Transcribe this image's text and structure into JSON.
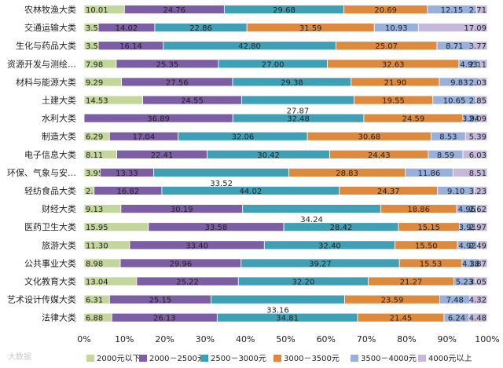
{
  "chart_data": {
    "type": "bar",
    "orientation": "horizontal",
    "stacked": "percent",
    "categories": [
      "农林牧渔大类",
      "交通运输大类",
      "生化与药品大类",
      "资源开发与测绘…",
      "材料与能源大类",
      "土建大类",
      "水利大类",
      "制造大类",
      "电子信息大类",
      "环保、气象与安…",
      "轻纺食品大类",
      "财经大类",
      "医药卫生大类",
      "旅游大类",
      "公共事业大类",
      "文化教育大类",
      "艺术设计传媒大类",
      "法律大类"
    ],
    "series": [
      {
        "name": "2000元以下",
        "color": "#c3d69b",
        "values": [
          10.01,
          3.51,
          3.51,
          7.98,
          9.29,
          14.53,
          0.0,
          6.29,
          8.11,
          3.95,
          2.47,
          9.13,
          15.95,
          11.3,
          8.98,
          13.04,
          6.31,
          6.88
        ]
      },
      {
        "name": "2000－2500元",
        "color": "#7b5ea3",
        "values": [
          24.76,
          14.02,
          16.14,
          25.35,
          27.56,
          24.55,
          36.89,
          17.04,
          22.41,
          13.33,
          16.82,
          30.19,
          33.58,
          33.4,
          29.96,
          25.22,
          25.15,
          26.13
        ]
      },
      {
        "name": "2500－3000元",
        "color": "#3fa0b5",
        "values": [
          29.68,
          22.86,
          42.8,
          27.0,
          29.38,
          27.87,
          32.48,
          32.06,
          30.42,
          33.52,
          44.02,
          34.24,
          28.42,
          32.4,
          39.27,
          32.2,
          33.16,
          34.81
        ]
      },
      {
        "name": "3000－3500元",
        "color": "#de8a3e",
        "values": [
          20.69,
          31.59,
          25.07,
          32.63,
          21.9,
          19.55,
          24.59,
          30.68,
          24.43,
          28.83,
          24.37,
          18.86,
          15.15,
          15.5,
          15.53,
          21.27,
          23.59,
          21.45
        ]
      },
      {
        "name": "3500－4000元",
        "color": "#99b0dc",
        "values": [
          12.15,
          10.93,
          8.71,
          4.93,
          9.83,
          10.65,
          3.94,
          8.53,
          8.59,
          11.86,
          9.1,
          4.96,
          3.93,
          4.92,
          4.38,
          5.23,
          7.48,
          6.24
        ]
      },
      {
        "name": "4000元以上",
        "color": "#c6b8da",
        "values": [
          2.71,
          17.09,
          3.77,
          2.11,
          2.03,
          2.85,
          2.09,
          5.39,
          6.03,
          8.51,
          3.23,
          2.62,
          2.97,
          2.49,
          1.87,
          3.05,
          4.32,
          4.48
        ]
      }
    ],
    "value_labels": [
      [
        "10.01",
        "24.76",
        "29.68",
        "20.69",
        "12.15",
        "2.71"
      ],
      [
        "3.51",
        "14.02",
        "22.86",
        "31.59",
        "10.93",
        "17.09"
      ],
      [
        "3.51",
        "16.14",
        "42.80",
        "25.07",
        "8.71",
        "3.77"
      ],
      [
        "7.98",
        "25.35",
        "27.00",
        "32.63",
        "4.93",
        "2.11"
      ],
      [
        "9.29",
        "27.56",
        "29.38",
        "21.90",
        "9.83",
        "2.03"
      ],
      [
        "14.53",
        "24.55",
        "27.87",
        "19.55",
        "10.65",
        "2.85"
      ],
      [
        "0.00",
        "36.89",
        "32.48",
        "24.59",
        "3.94",
        "2.09"
      ],
      [
        "6.29",
        "17.04",
        "32.06",
        "30.68",
        "8.53",
        "5.39"
      ],
      [
        "8.11",
        "22.41",
        "30.42",
        "24.43",
        "8.59",
        "6.03"
      ],
      [
        "3.95",
        "13.33",
        "33.52",
        "28.83",
        "11.86",
        "8.51"
      ],
      [
        "2.47",
        "16.82",
        "44.02",
        "24.37",
        "9.10",
        "3.23"
      ],
      [
        "9.13",
        "30.19",
        "34.24",
        "18.86",
        "4.96",
        "2.62"
      ],
      [
        "15.95",
        "33.58",
        "28.42",
        "15.15",
        "3.93",
        "2.97"
      ],
      [
        "11.30",
        "33.40",
        "32.40",
        "15.50",
        "4.92",
        "2.49"
      ],
      [
        "8.98",
        "29.96",
        "39.27",
        "15.53",
        "4.38",
        "1.87"
      ],
      [
        "13.04",
        "25.22",
        "32.20",
        "21.27",
        "5.23",
        "3.05"
      ],
      [
        "6.31",
        "25.15",
        "33.16",
        "23.59",
        "7.48",
        "4.32"
      ],
      [
        "6.88",
        "26.13",
        "34.81",
        "21.45",
        "6.24",
        "4.48"
      ]
    ],
    "x_ticks": [
      "0%",
      "10%",
      "20%",
      "30%",
      "40%",
      "50%",
      "60%",
      "70%",
      "80%",
      "90%",
      "100%"
    ],
    "xlim": [
      0,
      100
    ],
    "grid": false,
    "legend_position": "bottom"
  },
  "watermark": "大数据"
}
